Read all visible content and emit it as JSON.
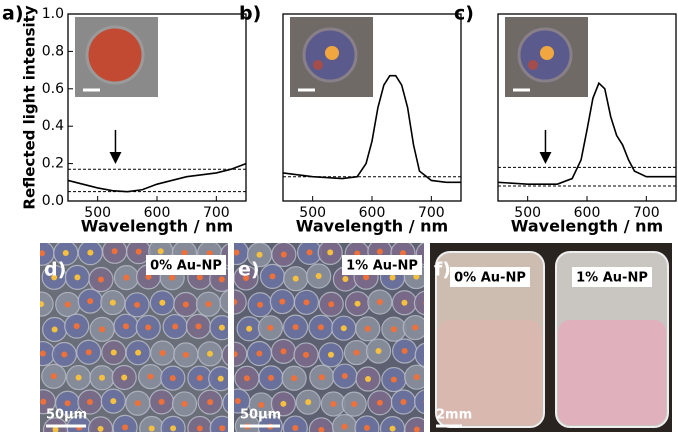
{
  "chart_data": [
    {
      "type": "line",
      "panel_label": "a)",
      "y_label": "Reflected light intensity",
      "x_label": "Wavelength / nm",
      "x": [
        450,
        475,
        500,
        525,
        550,
        575,
        600,
        625,
        650,
        675,
        700,
        725,
        750
      ],
      "values": [
        0.11,
        0.09,
        0.07,
        0.055,
        0.05,
        0.06,
        0.09,
        0.11,
        0.13,
        0.14,
        0.15,
        0.17,
        0.2
      ],
      "color": "#000000",
      "xlim": [
        450,
        750
      ],
      "ylim": [
        0,
        1
      ],
      "xticks": [
        500,
        600,
        700
      ],
      "yticks": [
        {
          "value": 0,
          "label": "0.0"
        },
        0.2,
        0.4,
        0.6,
        0.8,
        {
          "value": 1,
          "label": "1.0"
        }
      ],
      "reference_lines": [
        0.17,
        0.05
      ],
      "arrow": {
        "x": 530,
        "y_from": 0.38,
        "y_to": 0.23
      }
    },
    {
      "type": "line",
      "panel_label": "b)",
      "x_label": "Wavelength / nm",
      "x": [
        450,
        500,
        550,
        575,
        590,
        600,
        610,
        620,
        630,
        640,
        650,
        660,
        670,
        680,
        700,
        725,
        750
      ],
      "values": [
        0.15,
        0.13,
        0.12,
        0.13,
        0.2,
        0.32,
        0.5,
        0.62,
        0.67,
        0.67,
        0.62,
        0.5,
        0.3,
        0.16,
        0.11,
        0.1,
        0.1
      ],
      "color": "#000000",
      "xlim": [
        450,
        750
      ],
      "ylim": [
        0,
        1
      ],
      "xticks": [
        500,
        600,
        700
      ],
      "reference_lines": [
        0.13
      ]
    },
    {
      "type": "line",
      "panel_label": "c)",
      "x_label": "Wavelength / nm",
      "x": [
        450,
        500,
        550,
        575,
        590,
        600,
        610,
        620,
        630,
        640,
        650,
        660,
        670,
        680,
        700,
        725,
        750
      ],
      "values": [
        0.1,
        0.09,
        0.09,
        0.12,
        0.22,
        0.38,
        0.55,
        0.63,
        0.6,
        0.45,
        0.35,
        0.3,
        0.22,
        0.16,
        0.13,
        0.13,
        0.13
      ],
      "color": "#000000",
      "xlim": [
        450,
        750
      ],
      "ylim": [
        0,
        1
      ],
      "xticks": [
        500,
        600,
        700
      ],
      "reference_lines": [
        0.18,
        0.08
      ],
      "arrow": {
        "x": 530,
        "y_from": 0.38,
        "y_to": 0.23
      }
    }
  ],
  "photos": [
    {
      "label": "d)",
      "captions": [
        "0% Au-NP"
      ],
      "scale_bar": "50µm"
    },
    {
      "label": "e)",
      "captions": [
        "1% Au-NP"
      ],
      "scale_bar": "50µm"
    },
    {
      "label": "f)",
      "captions": [
        "0% Au-NP",
        "1% Au-NP"
      ],
      "scale_bar": "2mm"
    }
  ]
}
